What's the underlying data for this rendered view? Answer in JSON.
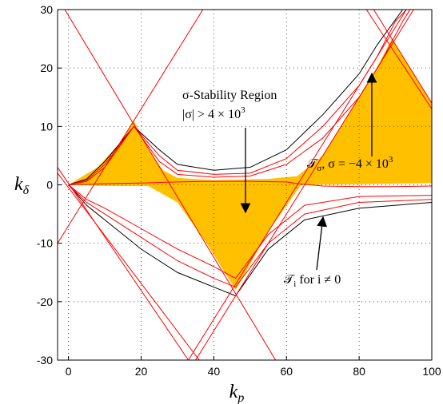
{
  "chart_data": {
    "type": "line",
    "xlabel": [
      "k",
      "p"
    ],
    "ylabel": [
      "k",
      "δ"
    ],
    "xlim": [
      -3,
      100
    ],
    "ylim": [
      -30,
      30
    ],
    "xticks": [
      0,
      20,
      40,
      60,
      80,
      100
    ],
    "yticks": [
      -30,
      -20,
      -10,
      0,
      10,
      20,
      30
    ],
    "grid": true,
    "annotations": [
      [
        "σ-Stability Region"
      ],
      [
        "|σ| > 4 × 10",
        "3"
      ],
      [
        "𝒯",
        "σ",
        ", σ = −4 × 10",
        "3"
      ],
      [
        "𝒯",
        "i",
        " for i ≠ 0"
      ]
    ],
    "series": [
      {
        "fill": "#ffc000",
        "x": [
          0,
          8,
          14,
          18,
          22,
          26,
          30,
          40,
          55,
          63,
          70,
          78,
          84,
          89,
          94,
          100,
          100,
          80,
          64,
          55,
          46,
          38,
          30,
          22,
          10,
          0
        ],
        "values": [
          0,
          3,
          7,
          11,
          6,
          2.5,
          1.2,
          0.8,
          1,
          1.5,
          5,
          13,
          19,
          25,
          20,
          14,
          0.3,
          0.1,
          0,
          -8,
          -18,
          -10,
          -3,
          -0.2,
          -0.2,
          0
        ]
      },
      {
        "color": "#000000",
        "x": [
          0,
          5,
          10,
          18,
          25,
          30,
          40,
          50,
          60,
          70,
          80,
          85,
          92
        ],
        "values": [
          0,
          1,
          4,
          10,
          6,
          3.5,
          2.5,
          3,
          6,
          12,
          19,
          24,
          30
        ]
      },
      {
        "color": "#ff0000",
        "x": [
          0,
          5,
          10,
          18,
          25,
          30,
          40,
          50,
          60,
          70,
          80,
          85,
          90,
          93
        ],
        "values": [
          0,
          0.8,
          3.5,
          10,
          5,
          2.5,
          1.8,
          2,
          4.5,
          10,
          17,
          22,
          28,
          30
        ]
      },
      {
        "color": "#ff0000",
        "x": [
          0,
          5,
          10,
          18,
          25,
          30,
          40,
          50,
          60,
          70,
          80,
          86,
          92,
          94
        ],
        "values": [
          0,
          0.6,
          3,
          10,
          4,
          1.8,
          1.3,
          1.5,
          3.5,
          8,
          15,
          21,
          28,
          30
        ]
      },
      {
        "color": "#ff0000",
        "x": [
          0,
          10,
          20,
          30,
          40,
          50,
          60,
          63,
          70,
          80,
          90,
          100
        ],
        "values": [
          0,
          0.2,
          0.3,
          0.5,
          0.6,
          0.6,
          0.5,
          0.2,
          -0.2,
          -0.3,
          -0.3,
          -0.2
        ]
      },
      {
        "color": "#000000",
        "x": [
          0,
          5,
          10,
          20,
          30,
          40,
          46,
          55,
          65,
          80,
          100
        ],
        "values": [
          0,
          -3.5,
          -6,
          -11,
          -15,
          -17.5,
          -19,
          -11,
          -6,
          -4,
          -3
        ]
      },
      {
        "color": "#ff0000",
        "x": [
          0,
          5,
          10,
          20,
          30,
          40,
          46,
          55,
          65,
          80,
          100
        ],
        "values": [
          0,
          -3,
          -5,
          -9,
          -13,
          -16,
          -17.5,
          -10,
          -5,
          -3,
          -2.5
        ]
      },
      {
        "color": "#ff0000",
        "x": [
          0,
          5,
          10,
          20,
          30,
          40,
          46,
          55,
          65,
          80,
          100
        ],
        "values": [
          0,
          -2.5,
          -4,
          -7.5,
          -11,
          -14,
          -16,
          -8.5,
          -3.5,
          -2,
          -1.8
        ]
      },
      {
        "color": "#ff0000",
        "x": [
          -1,
          57
        ],
        "values": [
          30,
          -30
        ]
      },
      {
        "color": "#ff0000",
        "x": [
          -3,
          33
        ],
        "values": [
          3,
          -30
        ]
      },
      {
        "color": "#ff0000",
        "x": [
          -3,
          36
        ],
        "values": [
          2,
          -30
        ]
      },
      {
        "color": "#ff0000",
        "x": [
          -3,
          37
        ],
        "values": [
          -10,
          30
        ]
      },
      {
        "color": "#ff0000",
        "x": [
          35,
          95
        ],
        "values": [
          -30,
          30
        ]
      },
      {
        "color": "#ff0000",
        "x": [
          33,
          93
        ],
        "values": [
          -30,
          30
        ]
      },
      {
        "color": "#ff0000",
        "x": [
          84,
          100
        ],
        "values": [
          30,
          14
        ]
      },
      {
        "color": "#ff0000",
        "x": [
          82,
          100
        ],
        "values": [
          30,
          13
        ]
      }
    ]
  }
}
